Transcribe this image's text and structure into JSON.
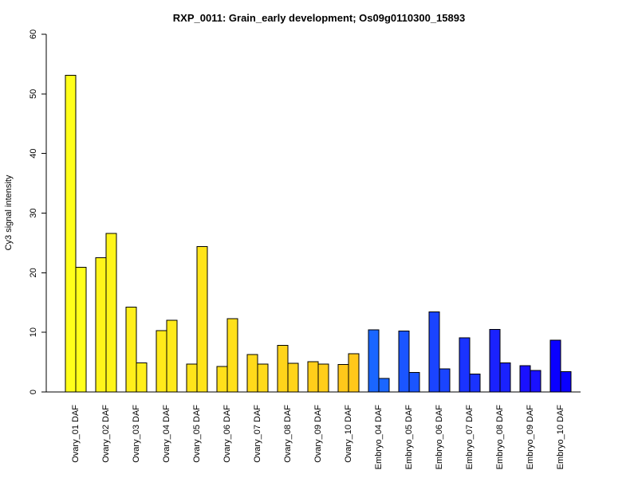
{
  "chart_data": {
    "type": "bar",
    "title": "RXP_0011: Grain_early development; Os09g0110300_15893",
    "xlabel": "",
    "ylabel": "Cy3 signal intensity",
    "ylim": [
      0,
      60
    ],
    "yticks": [
      0,
      10,
      20,
      30,
      40,
      50,
      60
    ],
    "grid": false,
    "legend": "none",
    "categories": [
      "Ovary_01 DAF",
      "Ovary_02 DAF",
      "Ovary_03 DAF",
      "Ovary_04 DAF",
      "Ovary_05 DAF",
      "Ovary_06 DAF",
      "Ovary_07 DAF",
      "Ovary_08 DAF",
      "Ovary_09 DAF",
      "Ovary_10 DAF",
      "Embryo_04 DAF",
      "Embryo_05 DAF",
      "Embryo_06 DAF",
      "Embryo_07 DAF",
      "Embryo_08 DAF",
      "Embryo_09 DAF",
      "Embryo_10 DAF"
    ],
    "values": [
      [
        53.1,
        20.9
      ],
      [
        22.5,
        26.6
      ],
      [
        14.2,
        4.9
      ],
      [
        10.3,
        12.0
      ],
      [
        4.7,
        24.4
      ],
      [
        4.3,
        12.3
      ],
      [
        6.3,
        4.7
      ],
      [
        7.8,
        4.8
      ],
      [
        5.1,
        4.7
      ],
      [
        4.6,
        6.4
      ],
      [
        10.4,
        2.3
      ],
      [
        10.2,
        3.3
      ],
      [
        13.4,
        3.9
      ],
      [
        9.1,
        3.0
      ],
      [
        10.5,
        4.9
      ],
      [
        4.4,
        3.6
      ],
      [
        8.7,
        3.4
      ]
    ],
    "colors": [
      "#ffff1a",
      "#fff51a",
      "#ffef1a",
      "#ffea1a",
      "#ffe41a",
      "#ffe01a",
      "#ffda1a",
      "#ffd41a",
      "#ffce1a",
      "#ffc81a",
      "#1a66ff",
      "#1a55ff",
      "#1a44ff",
      "#1a33ff",
      "#1a22ff",
      "#1a11ff",
      "#0a00ff"
    ]
  }
}
